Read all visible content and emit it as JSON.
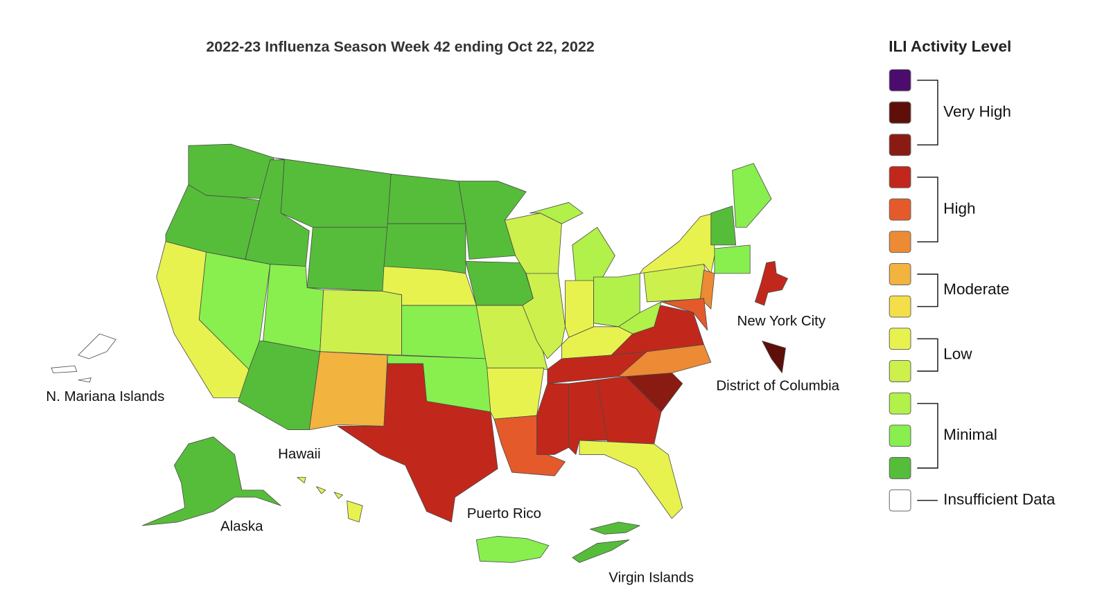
{
  "title": "2022-23 Influenza Season Week 42 ending Oct 22, 2022",
  "legend": {
    "title": "ILI Activity Level",
    "levels": [
      {
        "label": "Very High",
        "colors": [
          "#4b0c6e",
          "#5e0f0a",
          "#8a1b12"
        ]
      },
      {
        "label": "High",
        "colors": [
          "#c1281b",
          "#e45a2b",
          "#ec8a35"
        ]
      },
      {
        "label": "Moderate",
        "colors": [
          "#f2b33f",
          "#f4de4a"
        ]
      },
      {
        "label": "Low",
        "colors": [
          "#e7f24f",
          "#cdf04c"
        ]
      },
      {
        "label": "Minimal",
        "colors": [
          "#b2f04a",
          "#88ef4e",
          "#56bd3a"
        ]
      },
      {
        "label": "Insufficient Data",
        "colors": [
          "#ffffff"
        ]
      }
    ]
  },
  "map_labels": [
    "N. Mariana Islands",
    "Hawaii",
    "Alaska",
    "Puerto Rico",
    "Virgin Islands",
    "New York City",
    "District of Columbia"
  ]
}
